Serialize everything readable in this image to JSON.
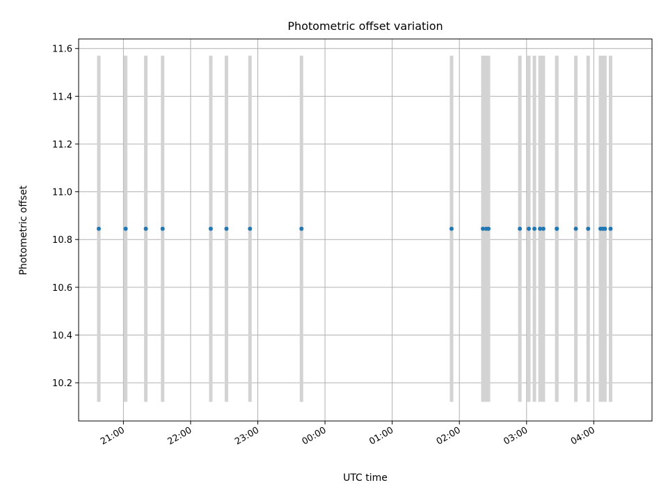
{
  "chart_data": {
    "type": "scatter",
    "title": "Photometric offset variation",
    "xlabel": "UTC time",
    "ylabel": "Photometric offset",
    "xlim": [
      "20:20",
      "04:52"
    ],
    "ylim": [
      10.04,
      11.64
    ],
    "xticks": [
      "21:00",
      "22:00",
      "23:00",
      "00:00",
      "01:00",
      "02:00",
      "03:00",
      "04:00"
    ],
    "yticks": [
      "10.2",
      "10.4",
      "10.6",
      "10.8",
      "11.0",
      "11.2",
      "11.4",
      "11.6"
    ],
    "grid": true,
    "error_band": [
      10.12,
      11.57
    ],
    "error_color": "#d3d3d3",
    "point_color": "#1f77b4",
    "series": [
      {
        "x": [
          "20:38",
          "21:02",
          "21:20",
          "21:35",
          "22:18",
          "22:32",
          "22:53",
          "23:39",
          "01:53",
          "02:21",
          "02:24",
          "02:26",
          "02:54",
          "03:02",
          "03:07",
          "03:12",
          "03:15",
          "03:27",
          "03:27",
          "03:44",
          "03:55",
          "04:06",
          "04:08",
          "04:10",
          "04:15"
        ],
        "y": [
          10.845,
          10.845,
          10.845,
          10.845,
          10.845,
          10.845,
          10.845,
          10.845,
          10.845,
          10.845,
          10.845,
          10.845,
          10.845,
          10.845,
          10.845,
          10.845,
          10.845,
          10.845,
          10.845,
          10.845,
          10.845,
          10.845,
          10.845,
          10.845,
          10.845
        ]
      }
    ]
  }
}
